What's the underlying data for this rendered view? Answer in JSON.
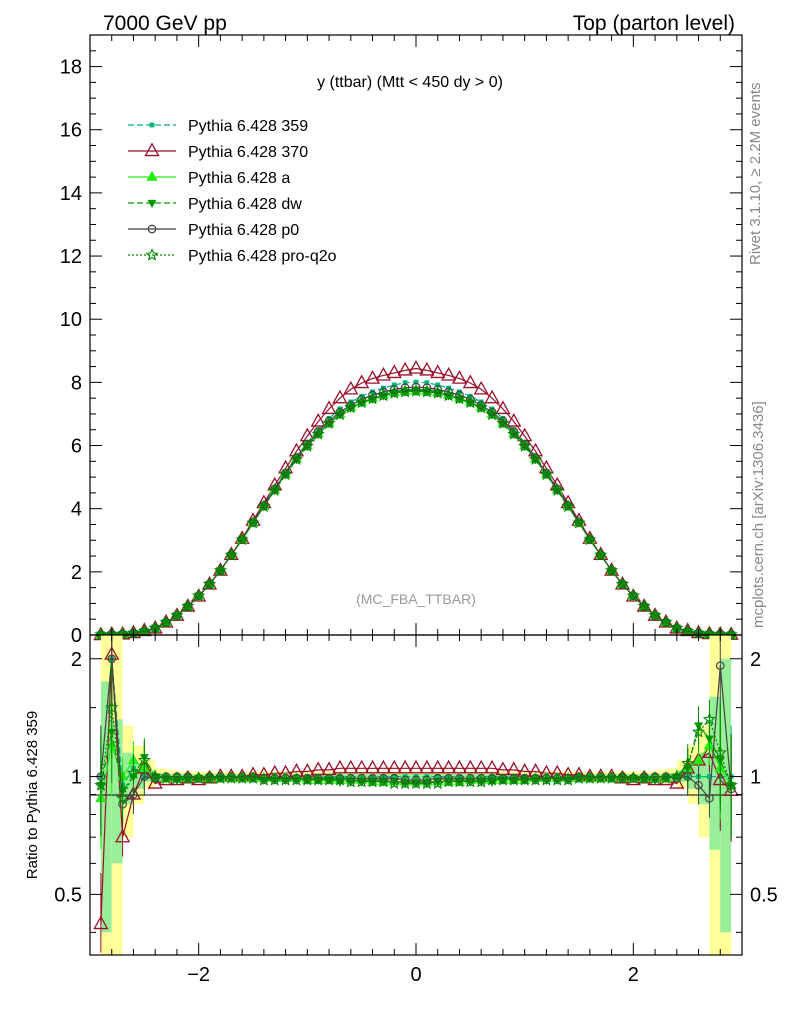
{
  "header": {
    "left": "7000 GeV pp",
    "right": "Top (parton level)"
  },
  "side_labels": {
    "rivet": "Rivet 3.1.10, ≥ 2.2M events",
    "mcplots": "mcplots.cern.ch [arXiv:1306.3436]"
  },
  "chart_data": {
    "type": "line",
    "title": "y (ttbar) (Mtt < 450 dy > 0)",
    "watermark": "(MC_FBA_TTBAR)",
    "xlim": [
      -3.0,
      3.0
    ],
    "main": {
      "ylim": [
        0,
        19
      ],
      "yticks": [
        0,
        2,
        4,
        6,
        8,
        10,
        12,
        14,
        16,
        18
      ],
      "ytick_labels": [
        "0",
        "2",
        "4",
        "6",
        "8",
        "10",
        "12",
        "14",
        "16",
        "18"
      ]
    },
    "ratio": {
      "ylabel": "Ratio to Pythia 6.428 359",
      "ylim": [
        0.35,
        2.3
      ],
      "yticks": [
        0.5,
        1,
        2
      ],
      "ytick_labels": [
        "0.5",
        "1",
        "2"
      ],
      "reference": 1
    },
    "xticks": [
      -2,
      0,
      2
    ],
    "xtick_labels": [
      "−2",
      "0",
      "2"
    ],
    "legend_position": "top-left",
    "x": [
      -2.9,
      -2.8,
      -2.7,
      -2.6,
      -2.5,
      -2.4,
      -2.3,
      -2.2,
      -2.1,
      -2.0,
      -1.9,
      -1.8,
      -1.7,
      -1.6,
      -1.5,
      -1.4,
      -1.3,
      -1.2,
      -1.1,
      -1.0,
      -0.9,
      -0.8,
      -0.7,
      -0.6,
      -0.5,
      -0.4,
      -0.3,
      -0.2,
      -0.1,
      0.0,
      0.1,
      0.2,
      0.3,
      0.4,
      0.5,
      0.6,
      0.7,
      0.8,
      0.9,
      1.0,
      1.1,
      1.2,
      1.3,
      1.4,
      1.5,
      1.6,
      1.7,
      1.8,
      1.9,
      2.0,
      2.1,
      2.2,
      2.3,
      2.4,
      2.5,
      2.6,
      2.7,
      2.8,
      2.9
    ],
    "series": [
      {
        "name": "Pythia 6.428 359",
        "color": "#00b779",
        "dash": "6,3",
        "marker": "square",
        "values": [
          0.01,
          0.02,
          0.03,
          0.06,
          0.12,
          0.22,
          0.4,
          0.62,
          0.91,
          1.25,
          1.62,
          2.05,
          2.55,
          3.04,
          3.58,
          4.12,
          4.66,
          5.16,
          5.66,
          6.1,
          6.5,
          6.86,
          7.16,
          7.38,
          7.56,
          7.7,
          7.82,
          7.92,
          7.99,
          8.01,
          7.99,
          7.92,
          7.82,
          7.7,
          7.56,
          7.38,
          7.16,
          6.86,
          6.5,
          6.1,
          5.66,
          5.16,
          4.66,
          4.12,
          3.58,
          3.04,
          2.55,
          2.05,
          1.62,
          1.25,
          0.91,
          0.62,
          0.4,
          0.22,
          0.12,
          0.06,
          0.03,
          0.02,
          0.01
        ],
        "ratio": [
          1.0,
          2.0,
          0.95,
          1.05,
          1.0,
          0.98,
          0.99,
          1.0,
          1.0,
          0.99,
          1.0,
          1.0,
          1.0,
          1.0,
          1.0,
          1.0,
          1.0,
          1.0,
          1.0,
          1.0,
          1.0,
          1.0,
          1.0,
          1.0,
          1.0,
          1.0,
          1.0,
          1.0,
          1.0,
          1.0,
          1.0,
          1.0,
          1.0,
          1.0,
          1.0,
          1.0,
          1.0,
          1.0,
          1.0,
          1.0,
          1.0,
          1.0,
          1.0,
          1.0,
          1.0,
          1.0,
          1.0,
          1.0,
          1.0,
          1.0,
          1.0,
          1.0,
          1.0,
          1.0,
          1.0,
          1.0,
          1.0,
          1.0,
          1.0
        ]
      },
      {
        "name": "Pythia 6.428 370",
        "color": "#9a0f2a",
        "dash": "",
        "marker": "triangle-open",
        "values": [
          0.0,
          0.02,
          0.02,
          0.06,
          0.13,
          0.21,
          0.4,
          0.61,
          0.9,
          1.22,
          1.6,
          2.04,
          2.54,
          3.05,
          3.62,
          4.18,
          4.74,
          5.28,
          5.82,
          6.3,
          6.76,
          7.16,
          7.5,
          7.78,
          7.98,
          8.12,
          8.22,
          8.3,
          8.38,
          8.44,
          8.38,
          8.3,
          8.22,
          8.12,
          7.98,
          7.78,
          7.5,
          7.16,
          6.76,
          6.3,
          5.82,
          5.28,
          4.74,
          4.18,
          3.62,
          3.05,
          2.54,
          2.04,
          1.6,
          1.22,
          0.9,
          0.61,
          0.4,
          0.21,
          0.13,
          0.06,
          0.03,
          0.02,
          0.01
        ],
        "ratio": [
          0.42,
          2.05,
          0.7,
          0.9,
          1.05,
          0.96,
          0.98,
          0.98,
          0.99,
          0.98,
          0.99,
          1.0,
          1.0,
          1.0,
          1.01,
          1.01,
          1.02,
          1.02,
          1.03,
          1.03,
          1.04,
          1.04,
          1.05,
          1.05,
          1.05,
          1.05,
          1.05,
          1.05,
          1.05,
          1.05,
          1.05,
          1.05,
          1.05,
          1.05,
          1.05,
          1.05,
          1.05,
          1.04,
          1.04,
          1.03,
          1.03,
          1.02,
          1.02,
          1.01,
          1.01,
          1.0,
          1.0,
          1.0,
          0.99,
          0.98,
          0.99,
          0.98,
          0.98,
          0.96,
          1.05,
          1.1,
          1.15,
          0.98,
          0.92
        ]
      },
      {
        "name": "Pythia 6.428 a",
        "color": "#22ee11",
        "dash": "",
        "marker": "triangle",
        "values": [
          0.01,
          0.02,
          0.03,
          0.06,
          0.12,
          0.22,
          0.4,
          0.62,
          0.9,
          1.24,
          1.61,
          2.04,
          2.54,
          3.02,
          3.55,
          4.08,
          4.6,
          5.1,
          5.58,
          6.0,
          6.38,
          6.72,
          7.0,
          7.22,
          7.38,
          7.5,
          7.6,
          7.68,
          7.72,
          7.74,
          7.72,
          7.68,
          7.6,
          7.5,
          7.38,
          7.22,
          7.0,
          6.72,
          6.38,
          6.0,
          5.58,
          5.1,
          4.6,
          4.08,
          3.55,
          3.02,
          2.54,
          2.04,
          1.61,
          1.24,
          0.9,
          0.62,
          0.4,
          0.22,
          0.12,
          0.06,
          0.03,
          0.02,
          0.01
        ],
        "ratio": [
          0.88,
          1.2,
          1.0,
          1.1,
          1.05,
          1.0,
          0.99,
          0.99,
          0.99,
          0.99,
          0.99,
          0.99,
          0.99,
          0.99,
          0.99,
          0.99,
          0.99,
          0.99,
          0.99,
          0.98,
          0.98,
          0.98,
          0.98,
          0.98,
          0.98,
          0.97,
          0.97,
          0.97,
          0.97,
          0.97,
          0.97,
          0.97,
          0.97,
          0.97,
          0.98,
          0.98,
          0.98,
          0.98,
          0.98,
          0.98,
          0.99,
          0.99,
          0.99,
          0.99,
          0.99,
          0.99,
          0.99,
          0.99,
          0.99,
          0.99,
          0.99,
          0.99,
          0.99,
          1.0,
          1.05,
          1.1,
          1.2,
          1.05,
          0.95
        ]
      },
      {
        "name": "Pythia 6.428 dw",
        "color": "#009900",
        "dash": "6,3",
        "marker": "triangle-down",
        "values": [
          0.01,
          0.02,
          0.03,
          0.06,
          0.12,
          0.22,
          0.4,
          0.62,
          0.91,
          1.24,
          1.61,
          2.04,
          2.53,
          3.02,
          3.55,
          4.07,
          4.58,
          5.08,
          5.56,
          5.98,
          6.36,
          6.7,
          6.98,
          7.2,
          7.36,
          7.48,
          7.58,
          7.66,
          7.7,
          7.72,
          7.7,
          7.66,
          7.58,
          7.48,
          7.36,
          7.2,
          6.98,
          6.7,
          6.36,
          5.98,
          5.56,
          5.08,
          4.58,
          4.07,
          3.55,
          3.02,
          2.53,
          2.04,
          1.61,
          1.24,
          0.91,
          0.62,
          0.4,
          0.22,
          0.12,
          0.06,
          0.03,
          0.02,
          0.01
        ],
        "ratio": [
          0.95,
          1.3,
          0.92,
          1.0,
          1.12,
          1.0,
          0.99,
          0.98,
          0.99,
          0.99,
          0.99,
          0.99,
          0.99,
          0.99,
          0.99,
          0.98,
          0.98,
          0.98,
          0.98,
          0.98,
          0.98,
          0.98,
          0.97,
          0.97,
          0.97,
          0.97,
          0.97,
          0.97,
          0.96,
          0.96,
          0.96,
          0.97,
          0.97,
          0.97,
          0.97,
          0.97,
          0.97,
          0.98,
          0.98,
          0.98,
          0.98,
          0.98,
          0.98,
          0.98,
          0.99,
          0.99,
          0.99,
          0.99,
          0.99,
          0.99,
          0.99,
          0.98,
          0.99,
          1.0,
          1.05,
          1.35,
          1.25,
          1.1,
          0.95
        ]
      },
      {
        "name": "Pythia 6.428 p0",
        "color": "#444444",
        "dash": "",
        "marker": "circle-open",
        "values": [
          0.01,
          0.02,
          0.03,
          0.06,
          0.12,
          0.22,
          0.4,
          0.62,
          0.9,
          1.24,
          1.61,
          2.04,
          2.54,
          3.03,
          3.57,
          4.1,
          4.63,
          5.13,
          5.62,
          6.05,
          6.44,
          6.78,
          7.06,
          7.28,
          7.46,
          7.6,
          7.7,
          7.78,
          7.83,
          7.85,
          7.83,
          7.78,
          7.7,
          7.6,
          7.46,
          7.28,
          7.06,
          6.78,
          6.44,
          6.05,
          5.62,
          5.13,
          4.63,
          4.1,
          3.57,
          3.03,
          2.54,
          2.04,
          1.61,
          1.24,
          0.9,
          0.62,
          0.4,
          0.22,
          0.12,
          0.06,
          0.03,
          0.02,
          0.01
        ],
        "ratio": [
          1.0,
          2.0,
          0.85,
          0.9,
          1.0,
          0.99,
          1.0,
          1.0,
          1.0,
          0.99,
          1.0,
          1.0,
          1.0,
          1.0,
          1.0,
          0.99,
          0.99,
          0.99,
          0.99,
          0.99,
          0.99,
          0.99,
          0.99,
          0.99,
          0.99,
          0.99,
          0.99,
          0.99,
          0.98,
          0.98,
          0.98,
          0.99,
          0.99,
          0.99,
          0.99,
          0.99,
          0.99,
          0.99,
          0.99,
          0.99,
          0.99,
          0.99,
          0.99,
          0.99,
          1.0,
          1.0,
          1.0,
          1.0,
          1.0,
          0.99,
          1.0,
          1.0,
          1.0,
          0.99,
          1.0,
          0.95,
          0.88,
          1.92,
          0.93
        ]
      },
      {
        "name": "Pythia 6.428 pro-q2o",
        "color": "#008800",
        "dash": "2,2",
        "marker": "star-open",
        "values": [
          0.01,
          0.02,
          0.03,
          0.06,
          0.12,
          0.22,
          0.4,
          0.62,
          0.91,
          1.24,
          1.61,
          2.04,
          2.53,
          3.02,
          3.55,
          4.07,
          4.58,
          5.08,
          5.56,
          5.98,
          6.36,
          6.7,
          6.98,
          7.2,
          7.36,
          7.48,
          7.58,
          7.66,
          7.7,
          7.72,
          7.7,
          7.66,
          7.58,
          7.48,
          7.36,
          7.2,
          6.98,
          6.7,
          6.36,
          5.98,
          5.56,
          5.08,
          4.58,
          4.07,
          3.55,
          3.02,
          2.53,
          2.04,
          1.61,
          1.24,
          0.91,
          0.62,
          0.4,
          0.22,
          0.12,
          0.06,
          0.03,
          0.02,
          0.01
        ],
        "ratio": [
          0.95,
          1.5,
          0.88,
          1.02,
          1.1,
          1.0,
          0.99,
          0.99,
          0.99,
          0.99,
          0.99,
          0.99,
          0.99,
          0.99,
          0.99,
          0.98,
          0.98,
          0.98,
          0.98,
          0.98,
          0.98,
          0.98,
          0.98,
          0.97,
          0.97,
          0.97,
          0.97,
          0.96,
          0.96,
          0.96,
          0.96,
          0.96,
          0.97,
          0.97,
          0.97,
          0.97,
          0.98,
          0.98,
          0.98,
          0.98,
          0.98,
          0.98,
          0.98,
          0.98,
          0.99,
          0.99,
          0.99,
          0.99,
          0.99,
          0.99,
          0.99,
          0.99,
          0.99,
          1.0,
          1.08,
          1.3,
          1.4,
          1.15,
          0.95
        ]
      }
    ],
    "ratio_bands": {
      "x": [
        -2.85,
        -2.75,
        -2.65,
        -2.55,
        -2.45,
        -2.35,
        -2.25,
        2.25,
        2.35,
        2.45,
        2.55,
        2.65,
        2.75,
        2.85
      ],
      "yellow": [
        [
          0.35,
          2.3
        ],
        [
          0.35,
          2.3
        ],
        [
          0.7,
          1.35
        ],
        [
          0.85,
          1.2
        ],
        [
          0.93,
          1.1
        ],
        [
          0.96,
          1.05
        ],
        [
          0.97,
          1.04
        ],
        [
          0.97,
          1.04
        ],
        [
          0.96,
          1.05
        ],
        [
          0.93,
          1.1
        ],
        [
          0.85,
          1.2
        ],
        [
          0.7,
          1.35
        ],
        [
          0.35,
          2.3
        ],
        [
          0.35,
          2.3
        ]
      ],
      "green": [
        [
          0.4,
          1.75
        ],
        [
          0.6,
          1.4
        ],
        [
          0.85,
          1.15
        ],
        [
          0.93,
          1.08
        ],
        [
          0.97,
          1.04
        ],
        [
          0.98,
          1.02
        ],
        [
          0.985,
          1.015
        ],
        [
          0.985,
          1.015
        ],
        [
          0.98,
          1.02
        ],
        [
          0.97,
          1.04
        ],
        [
          0.93,
          1.08
        ],
        [
          0.85,
          1.15
        ],
        [
          0.65,
          1.6
        ],
        [
          0.4,
          2.0
        ]
      ]
    }
  }
}
